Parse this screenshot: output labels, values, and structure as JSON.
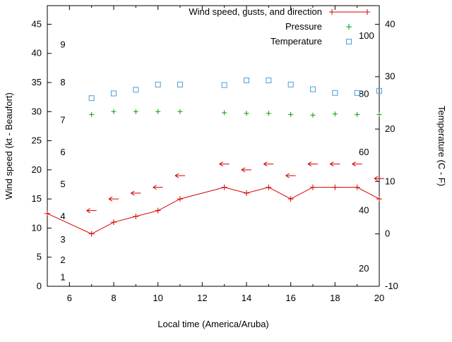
{
  "chart_data": {
    "type": "line",
    "title": "",
    "x_axis": {
      "label": "Local time (America/Aruba)",
      "range": [
        5,
        20
      ],
      "major_ticks": [
        6,
        8,
        10,
        12,
        14,
        16,
        18,
        20
      ],
      "minor_tick_step": 1
    },
    "y_left_axis": {
      "label": "Wind speed (kt - Beaufort)",
      "range": [
        0,
        48.2
      ],
      "major_ticks": [
        0,
        5,
        10,
        15,
        20,
        25,
        30,
        35,
        40,
        45
      ],
      "beaufort_labels": {
        "labels": [
          "1",
          "2",
          "3",
          "4",
          "5",
          "6",
          "7",
          "8",
          "9"
        ],
        "kt": [
          1.5,
          4.5,
          8,
          12,
          17.5,
          23,
          28.5,
          35,
          41.5
        ]
      }
    },
    "y_right_axis": {
      "label": "Temperature (C - F)",
      "major_ticks_c": [
        -10,
        0,
        10,
        20,
        30,
        40
      ],
      "fahrenheit_labels": [
        20,
        40,
        60,
        80,
        100
      ]
    },
    "legend": {
      "position": "top-right-inside",
      "entries": [
        {
          "label": "Wind speed, gusts, and direction",
          "color": "#d40000",
          "sample": "line-plus"
        },
        {
          "label": "Pressure",
          "color": "#00a000",
          "sample": "plus"
        },
        {
          "label": "Temperature",
          "color": "#4a9fd8",
          "sample": "square"
        }
      ]
    },
    "series": [
      {
        "name": "wind-speed",
        "axis": "left",
        "unit": "kt",
        "color": "#d40000",
        "marker": "plus",
        "line": true,
        "x": [
          5,
          7,
          8,
          9,
          10,
          11,
          13,
          14,
          15,
          16,
          17,
          18,
          19,
          20
        ],
        "y": [
          12.5,
          9,
          11,
          12,
          13,
          15,
          17,
          16,
          17,
          15,
          17,
          17,
          17,
          15
        ]
      },
      {
        "name": "wind-gusts",
        "axis": "left",
        "unit": "kt",
        "color": "#d40000",
        "marker": "arrow-left",
        "line": false,
        "x": [
          7,
          8,
          9,
          10,
          11,
          13,
          14,
          15,
          16,
          17,
          18,
          19,
          20
        ],
        "y": [
          13,
          15,
          16,
          17,
          19,
          21,
          20,
          21,
          19,
          21,
          21,
          21,
          18.5
        ]
      },
      {
        "name": "pressure",
        "axis": "left",
        "unit": "inHg",
        "color": "#00a000",
        "marker": "plus",
        "line": false,
        "x": [
          7,
          8,
          9,
          10,
          11,
          13,
          14,
          15,
          16,
          17,
          18,
          19,
          20
        ],
        "y": [
          29.5,
          30,
          30,
          30,
          30,
          29.8,
          29.7,
          29.7,
          29.5,
          29.4,
          29.6,
          29.5,
          29.5
        ]
      },
      {
        "name": "temperature",
        "axis": "right",
        "unit": "C",
        "color": "#4a9fd8",
        "marker": "open-square",
        "line": false,
        "x": [
          7,
          8,
          9,
          10,
          11,
          13,
          14,
          15,
          16,
          17,
          18,
          19,
          20
        ],
        "y": [
          25.9,
          26.8,
          27.5,
          28.5,
          28.5,
          28.4,
          29.3,
          29.3,
          28.5,
          27.6,
          26.9,
          26.9,
          27.3
        ]
      }
    ]
  }
}
